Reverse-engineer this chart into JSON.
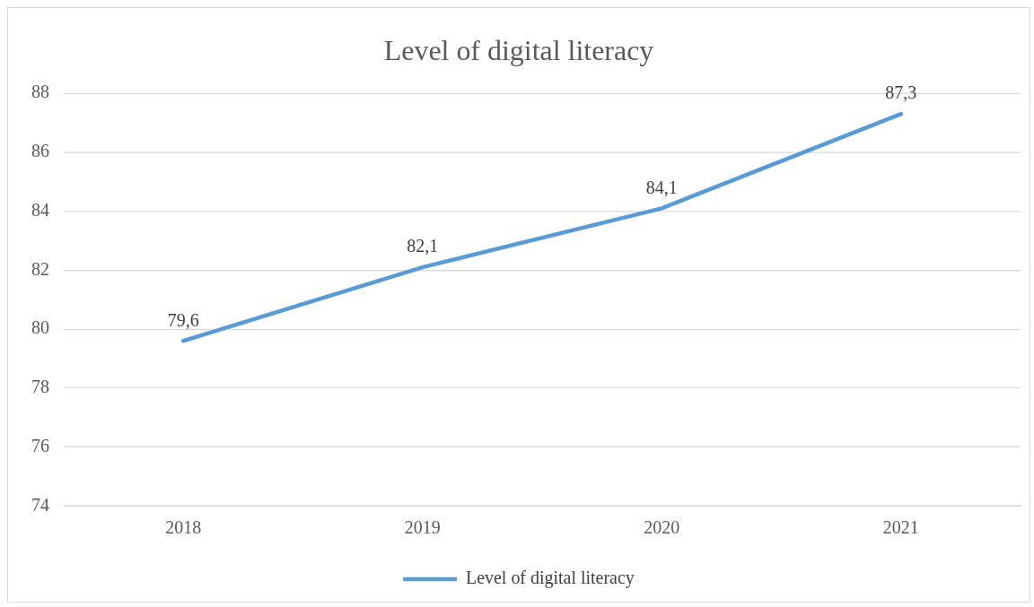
{
  "chart_data": {
    "type": "line",
    "title": "Level of digital literacy",
    "categories": [
      "2018",
      "2019",
      "2020",
      "2021"
    ],
    "series": [
      {
        "name": "Level of digital literacy",
        "color": "#5b9bd5",
        "values": [
          79.6,
          82.1,
          84.1,
          87.3
        ],
        "value_labels": [
          "79,6",
          "82,1",
          "84,1",
          "87,3"
        ]
      }
    ],
    "ylim": [
      74,
      88
    ],
    "yticks": [
      74,
      76,
      78,
      80,
      82,
      84,
      86,
      88
    ],
    "grid": "y",
    "legend": "bottom",
    "line_style": "solid"
  }
}
